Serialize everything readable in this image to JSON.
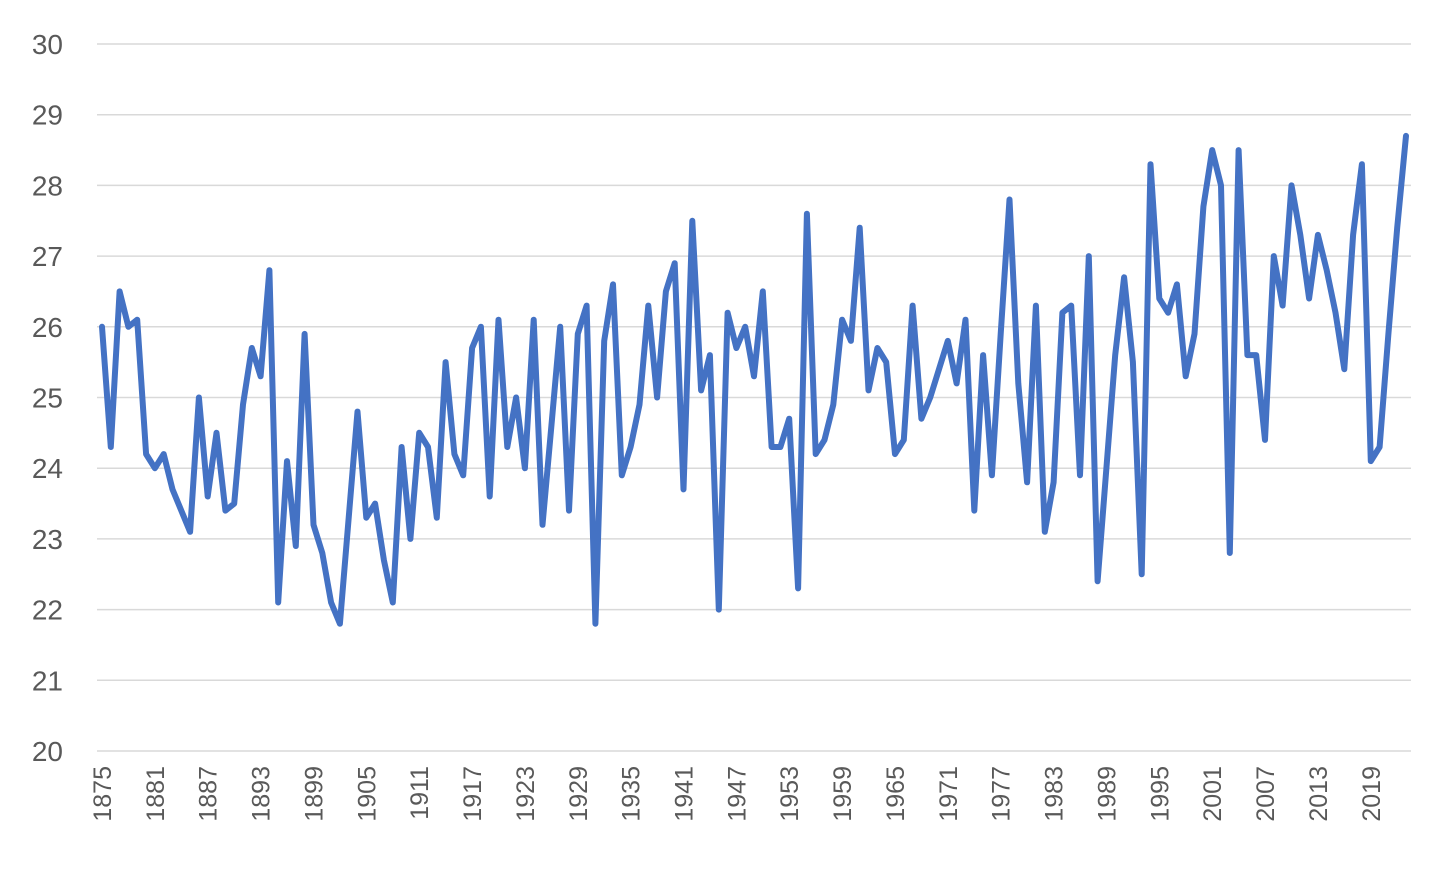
{
  "chart_data": {
    "type": "line",
    "title": "",
    "xlabel": "",
    "ylabel": "",
    "ylim": [
      20,
      30
    ],
    "yticks": [
      "20",
      "21",
      "22",
      "23",
      "24",
      "25",
      "26",
      "27",
      "28",
      "29",
      "30"
    ],
    "xlim": [
      1875,
      2023
    ],
    "xticks": [
      "1875",
      "1881",
      "1887",
      "1893",
      "1899",
      "1905",
      "1911",
      "1917",
      "1923",
      "1929",
      "1935",
      "1941",
      "1947",
      "1953",
      "1959",
      "1965",
      "1971",
      "1977",
      "1983",
      "1989",
      "1995",
      "2001",
      "2007",
      "2013",
      "2019"
    ],
    "grid": "horizontal",
    "legend": "none",
    "series": [
      {
        "color": "#4472C4",
        "x": [
          1875,
          1876,
          1877,
          1878,
          1879,
          1880,
          1881,
          1882,
          1883,
          1884,
          1885,
          1886,
          1887,
          1888,
          1889,
          1890,
          1891,
          1892,
          1893,
          1894,
          1895,
          1896,
          1897,
          1898,
          1899,
          1900,
          1901,
          1902,
          1903,
          1904,
          1905,
          1906,
          1907,
          1908,
          1909,
          1910,
          1911,
          1912,
          1913,
          1914,
          1915,
          1916,
          1917,
          1918,
          1919,
          1920,
          1921,
          1922,
          1923,
          1924,
          1925,
          1926,
          1927,
          1928,
          1929,
          1930,
          1931,
          1932,
          1933,
          1934,
          1935,
          1936,
          1937,
          1938,
          1939,
          1940,
          1941,
          1942,
          1943,
          1944,
          1945,
          1946,
          1947,
          1948,
          1949,
          1950,
          1951,
          1952,
          1953,
          1954,
          1955,
          1956,
          1957,
          1958,
          1959,
          1960,
          1961,
          1962,
          1963,
          1964,
          1965,
          1966,
          1967,
          1968,
          1969,
          1970,
          1971,
          1972,
          1973,
          1974,
          1975,
          1976,
          1977,
          1978,
          1979,
          1980,
          1981,
          1982,
          1983,
          1984,
          1985,
          1986,
          1987,
          1988,
          1989,
          1990,
          1991,
          1992,
          1993,
          1994,
          1995,
          1996,
          1997,
          1998,
          1999,
          2000,
          2001,
          2002,
          2003,
          2004,
          2005,
          2006,
          2007,
          2008,
          2009,
          2010,
          2011,
          2012,
          2013,
          2014,
          2015,
          2016,
          2017,
          2018,
          2019,
          2020,
          2021,
          2022,
          2023
        ],
        "y": [
          26.0,
          24.3,
          26.5,
          26.0,
          26.1,
          24.2,
          24.0,
          24.2,
          23.7,
          23.4,
          23.1,
          25.0,
          23.6,
          24.5,
          23.4,
          23.5,
          24.9,
          25.7,
          25.3,
          26.8,
          22.1,
          24.1,
          22.9,
          25.9,
          23.2,
          22.8,
          22.1,
          21.8,
          23.3,
          24.8,
          23.3,
          23.5,
          22.7,
          22.1,
          24.3,
          23.0,
          24.5,
          24.3,
          23.3,
          25.5,
          24.2,
          23.9,
          25.7,
          26.0,
          23.6,
          26.1,
          24.3,
          25.0,
          24.0,
          26.1,
          23.2,
          24.6,
          26.0,
          23.4,
          25.9,
          26.3,
          21.8,
          25.8,
          26.6,
          23.9,
          24.3,
          24.9,
          26.3,
          25.0,
          26.5,
          26.9,
          23.7,
          27.5,
          25.1,
          25.6,
          22.0,
          26.2,
          25.7,
          26.0,
          25.3,
          26.5,
          24.3,
          24.3,
          24.7,
          22.3,
          27.6,
          24.2,
          24.4,
          24.9,
          26.1,
          25.8,
          27.4,
          25.1,
          25.7,
          25.5,
          24.2,
          24.4,
          26.3,
          24.7,
          25.0,
          25.4,
          25.8,
          25.2,
          26.1,
          23.4,
          25.6,
          23.9,
          25.9,
          27.8,
          25.2,
          23.8,
          26.3,
          23.1,
          23.8,
          26.2,
          26.3,
          23.9,
          27.0,
          22.4,
          24.0,
          25.6,
          26.7,
          25.5,
          22.5,
          28.3,
          26.4,
          26.2,
          26.6,
          25.3,
          25.9,
          27.7,
          28.5,
          28.0,
          22.8,
          28.5,
          25.6,
          25.6,
          24.4,
          27.0,
          26.3,
          28.0,
          27.3,
          26.4,
          27.3,
          26.8,
          26.2,
          25.4,
          27.3,
          28.3,
          24.1,
          24.3,
          25.9,
          27.4,
          28.7
        ]
      }
    ]
  }
}
